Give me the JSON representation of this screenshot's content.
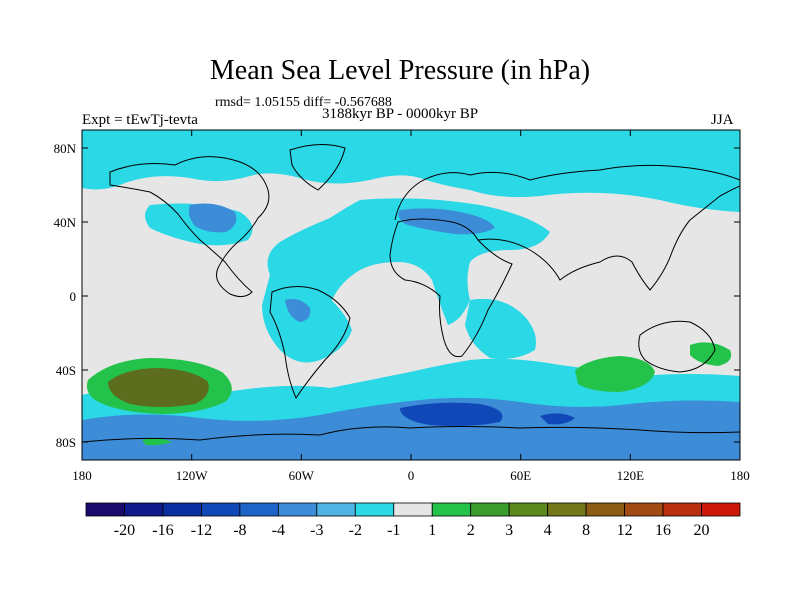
{
  "title": "Mean Sea Level Pressure (in hPa)",
  "stats": "rmsd= 1.05155 diff= -0.567688",
  "experiment": "Expt = tEwTj-tevta",
  "period": "3188kyr BP - 0000kyr BP",
  "season": "JJA",
  "lat_labels": [
    "80N",
    "40N",
    "0",
    "40S",
    "80S"
  ],
  "lon_labels": [
    "180",
    "120W",
    "60W",
    "0",
    "60E",
    "120E",
    "180"
  ],
  "colorbar": {
    "colors": [
      "#1a0a6b",
      "#101a8a",
      "#0a2fa0",
      "#1048b8",
      "#1e64c8",
      "#3c8cd8",
      "#50b4e4",
      "#2ad8e6",
      "#e6e6e6",
      "#23c24a",
      "#3a9c2a",
      "#5c8a1e",
      "#74761a",
      "#8a5c16",
      "#a04a14",
      "#b83010",
      "#cc1808"
    ],
    "labels": [
      "-20",
      "-16",
      "-12",
      "-8",
      "-4",
      "-3",
      "-2",
      "-1",
      "1",
      "2",
      "3",
      "4",
      "8",
      "12",
      "16",
      "20"
    ]
  },
  "map_colors": {
    "background": "#e6e6e6",
    "light_cyan": "#2ad8e6",
    "mid_blue": "#3c8cd8",
    "dark_blue": "#1048b8",
    "green": "#23c24a",
    "dark_green": "#5c6e1e"
  }
}
